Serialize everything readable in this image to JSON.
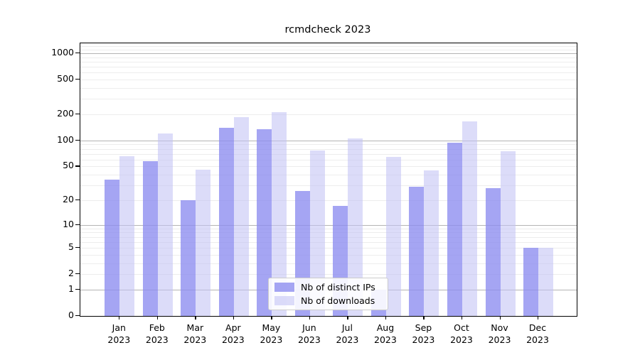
{
  "chart_data": {
    "type": "bar",
    "title": "rcmdcheck 2023",
    "categories": [
      "Jan 2023",
      "Feb 2023",
      "Mar 2023",
      "Apr 2023",
      "May 2023",
      "Jun 2023",
      "Jul 2023",
      "Aug 2023",
      "Sep 2023",
      "Oct 2023",
      "Nov 2023",
      "Dec 2023"
    ],
    "series": [
      {
        "name": "Nb of distinct IPs",
        "color": "rgba(140,140,240,0.78)",
        "color_hex": "#a5a5f3",
        "values": [
          35,
          58,
          20,
          140,
          135,
          26,
          17,
          1,
          29,
          94,
          28,
          5
        ]
      },
      {
        "name": "Nb of downloads",
        "color": "rgba(195,195,245,0.58)",
        "color_hex": "#dcdcf6",
        "values": [
          66,
          120,
          46,
          185,
          210,
          76,
          105,
          65,
          45,
          165,
          75,
          5
        ]
      }
    ],
    "xlabel": "",
    "ylabel": "",
    "yscale": {
      "type": "log1p",
      "ticks": [
        0,
        1,
        2,
        5,
        10,
        20,
        50,
        100,
        200,
        500,
        1000
      ],
      "major_gridlines": [
        1,
        10,
        100,
        1000
      ],
      "ylim": [
        0,
        1300
      ],
      "grid": true
    },
    "legend": {
      "position": "lower center"
    },
    "colors": {
      "bar_dark": "#a5a5f3",
      "bar_light": "#dcdcf6",
      "grid_major": "#b4b4b4",
      "grid_minor": "#ededed",
      "spine": "#000000",
      "background": "#ffffff"
    }
  }
}
